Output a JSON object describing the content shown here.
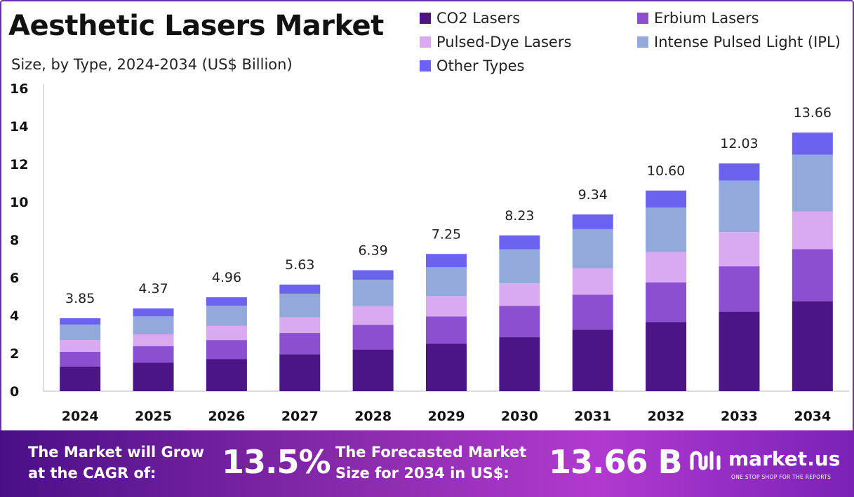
{
  "header": {
    "title": "Aesthetic Lasers Market",
    "subtitle": "Size, by Type, 2024-2034 (US$ Billion)"
  },
  "chart_data": {
    "type": "bar",
    "stacked": true,
    "categories": [
      "2024",
      "2025",
      "2026",
      "2027",
      "2028",
      "2029",
      "2030",
      "2031",
      "2032",
      "2033",
      "2034"
    ],
    "series": [
      {
        "name": "CO2 Lasers",
        "color": "#4b1585",
        "values": [
          1.3,
          1.5,
          1.7,
          1.95,
          2.2,
          2.5,
          2.85,
          3.25,
          3.65,
          4.2,
          4.75
        ]
      },
      {
        "name": "Erbium Lasers",
        "color": "#8c4fd0",
        "values": [
          0.78,
          0.88,
          1.0,
          1.13,
          1.3,
          1.45,
          1.65,
          1.85,
          2.1,
          2.4,
          2.75
        ]
      },
      {
        "name": "Pulsed-Dye Lasers",
        "color": "#d9aaf0",
        "values": [
          0.62,
          0.62,
          0.75,
          0.82,
          1.0,
          1.08,
          1.2,
          1.4,
          1.6,
          1.8,
          2.0
        ]
      },
      {
        "name": "Intense Pulsed Light (IPL)",
        "color": "#93a9dc",
        "values": [
          0.82,
          0.95,
          1.06,
          1.25,
          1.39,
          1.52,
          1.8,
          2.06,
          2.35,
          2.73,
          3.0
        ]
      },
      {
        "name": "Other Types",
        "color": "#6b63f0",
        "values": [
          0.33,
          0.42,
          0.45,
          0.48,
          0.5,
          0.7,
          0.73,
          0.78,
          0.9,
          0.9,
          1.16
        ]
      }
    ],
    "totals": [
      "3.85",
      "4.37",
      "4.96",
      "5.63",
      "6.39",
      "7.25",
      "8.23",
      "9.34",
      "10.60",
      "12.03",
      "13.66"
    ],
    "yticks": [
      "0",
      "2",
      "4",
      "6",
      "8",
      "10",
      "12",
      "14",
      "16"
    ],
    "ylim": [
      0,
      16
    ],
    "grid": false,
    "legend_position": "top-right"
  },
  "legend": {
    "items": [
      {
        "label": "CO2 Lasers",
        "color": "#4b1585"
      },
      {
        "label": "Erbium Lasers",
        "color": "#8c4fd0"
      },
      {
        "label": "Pulsed-Dye Lasers",
        "color": "#d9aaf0"
      },
      {
        "label": "Intense Pulsed Light (IPL)",
        "color": "#93a9dc"
      },
      {
        "label": "Other Types",
        "color": "#6b63f0"
      }
    ]
  },
  "banner": {
    "cagr_text_1": "The Market will Grow",
    "cagr_text_2": "at the CAGR of:",
    "cagr_value": "13.5%",
    "forecast_text_1": "The Forecasted Market",
    "forecast_text_2": "Size for 2034 in US$:",
    "forecast_value": "13.66 B",
    "brand_name": "market.us",
    "brand_tagline": "ONE STOP SHOP FOR THE REPORTS",
    "brand_icon": "market-us-logo-icon"
  }
}
